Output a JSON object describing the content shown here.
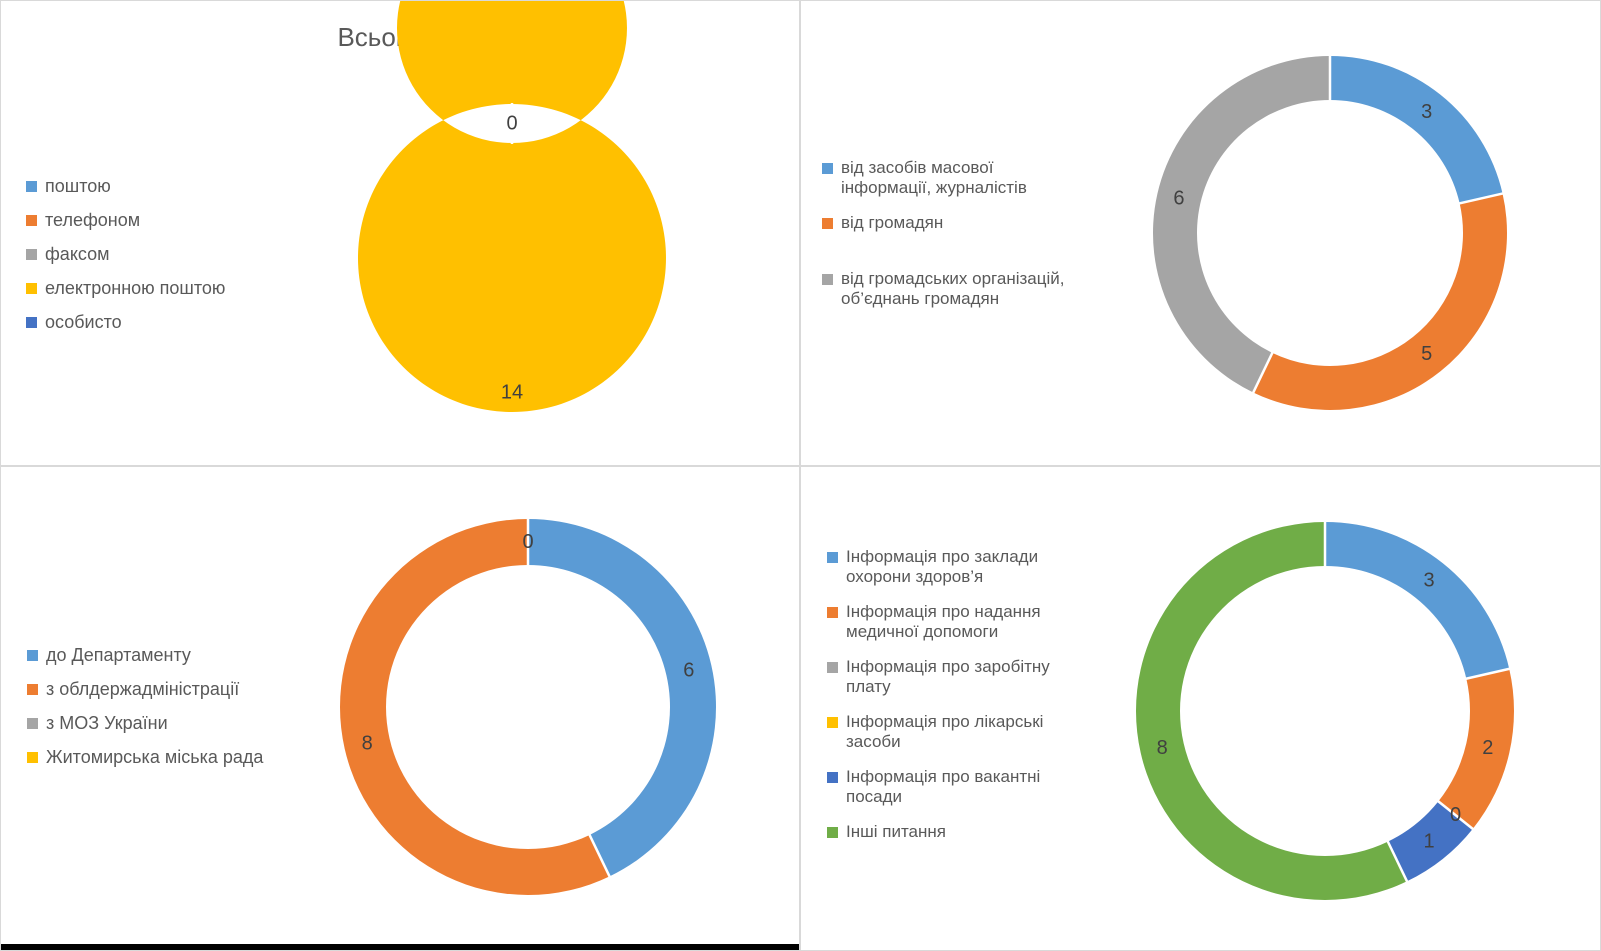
{
  "style": {
    "text_color": "#595959",
    "slice_label_color": "#404040",
    "panel_border_color": "#D9D9D9",
    "separator_color": "#FFFFFF",
    "bottom_bar_color": "#000000",
    "background": "#FFFFFF"
  },
  "chart_data": [
    {
      "type": "pie",
      "subtype": "donut",
      "position": "top-left",
      "title": "Всього: 14",
      "legend_position": "left",
      "categories": [
        "поштою",
        "телефоном",
        "факсом",
        "електронною поштою",
        "особисто"
      ],
      "values": [
        0,
        0,
        0,
        14,
        0
      ],
      "colors": [
        "#5B9BD5",
        "#ED7D31",
        "#A5A5A5",
        "#FFC000",
        "#4472C4"
      ],
      "visible_slice_labels": [
        "0",
        "14"
      ]
    },
    {
      "type": "pie",
      "subtype": "donut",
      "position": "top-right",
      "title": "",
      "legend_position": "left",
      "categories": [
        "від засобів масової\nінформації, журналістів",
        "від громадян",
        "від громадських організацій,\nоб’єднань громадян"
      ],
      "values": [
        3,
        5,
        6
      ],
      "colors": [
        "#5B9BD5",
        "#ED7D31",
        "#A5A5A5"
      ],
      "visible_slice_labels": [
        "3",
        "5",
        "6"
      ]
    },
    {
      "type": "pie",
      "subtype": "donut",
      "position": "bottom-left",
      "title": "",
      "legend_position": "left",
      "categories": [
        "до Департаменту",
        "з облдержадміністрації",
        "з МОЗ України",
        "Житомирська міська рада"
      ],
      "values": [
        6,
        8,
        0,
        0
      ],
      "colors": [
        "#5B9BD5",
        "#ED7D31",
        "#A5A5A5",
        "#FFC000"
      ],
      "visible_slice_labels": [
        "6",
        "8",
        "0"
      ]
    },
    {
      "type": "pie",
      "subtype": "donut",
      "position": "bottom-right",
      "title": "",
      "legend_position": "left",
      "categories": [
        "Інформація про заклади\nохорони здоров’я",
        "Інформація про надання\nмедичної допомоги",
        "Інформація про заробітну\nплату",
        "Інформація про лікарські\nзасоби",
        "Інформація про вакантні\nпосади",
        "Інші питання"
      ],
      "values": [
        3,
        2,
        0,
        0,
        1,
        8
      ],
      "colors": [
        "#5B9BD5",
        "#ED7D31",
        "#A5A5A5",
        "#FFC000",
        "#4472C4",
        "#70AD47"
      ],
      "visible_slice_labels": [
        "3",
        "2",
        "0",
        "1",
        "8"
      ]
    }
  ]
}
